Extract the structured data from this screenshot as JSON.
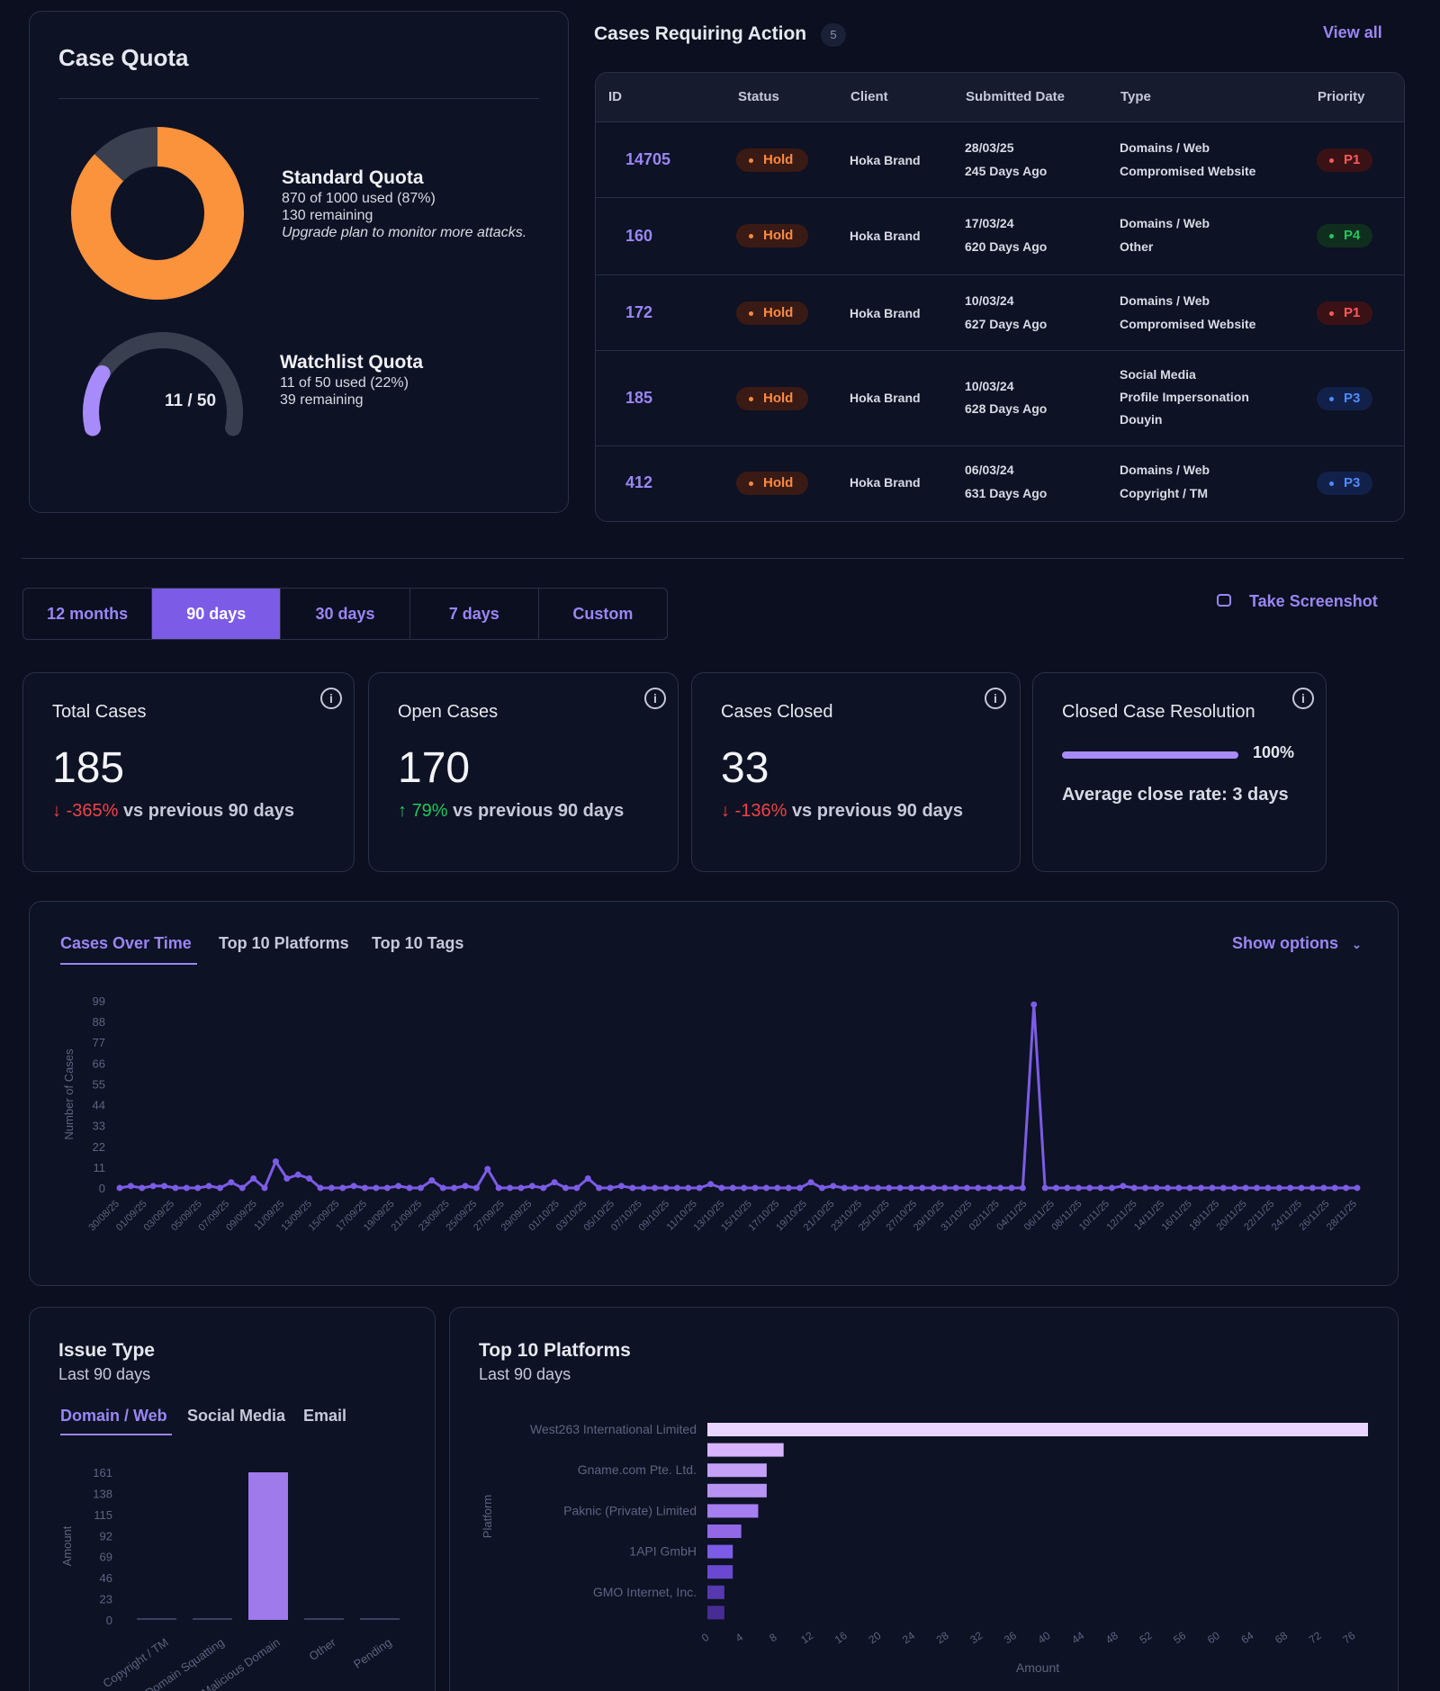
{
  "quota": {
    "title": "Case Quota",
    "standard": {
      "title": "Standard Quota",
      "used_text": "870 of 1000 used (87%)",
      "remaining_text": "130 remaining",
      "note": "Upgrade plan to monitor more attacks.",
      "used": 870,
      "total": 1000
    },
    "watchlist": {
      "title": "Watchlist Quota",
      "used_text": "11 of 50 used (22%)",
      "remaining_text": "39 remaining",
      "gauge_label": "11 / 50",
      "used": 11,
      "total": 50
    },
    "colors": {
      "standard": "#fb923c",
      "watchlist": "#a78bfa",
      "track": "#3a3f4f"
    }
  },
  "cases": {
    "title": "Cases Requiring Action",
    "count": "5",
    "view_all": "View all",
    "columns": [
      "ID",
      "Status",
      "Client",
      "Submitted Date",
      "Type",
      "Priority"
    ],
    "rows": [
      {
        "id": "14705",
        "status": "Hold",
        "client": "Hoka Brand",
        "date": "28/03/25",
        "ago": "245 Days Ago",
        "type": [
          "Domains / Web",
          "Compromised Website"
        ],
        "priority": "P1"
      },
      {
        "id": "160",
        "status": "Hold",
        "client": "Hoka Brand",
        "date": "17/03/24",
        "ago": "620 Days Ago",
        "type": [
          "Domains / Web",
          "Other"
        ],
        "priority": "P4"
      },
      {
        "id": "172",
        "status": "Hold",
        "client": "Hoka Brand",
        "date": "10/03/24",
        "ago": "627 Days Ago",
        "type": [
          "Domains / Web",
          "Compromised Website"
        ],
        "priority": "P1"
      },
      {
        "id": "185",
        "status": "Hold",
        "client": "Hoka Brand",
        "date": "10/03/24",
        "ago": "628 Days Ago",
        "type": [
          "Social Media",
          "Profile Impersonation",
          "Douyin"
        ],
        "priority": "P3"
      },
      {
        "id": "412",
        "status": "Hold",
        "client": "Hoka Brand",
        "date": "06/03/24",
        "ago": "631 Days Ago",
        "type": [
          "Domains / Web",
          "Copyright / TM"
        ],
        "priority": "P3"
      }
    ]
  },
  "ranges": {
    "tabs": [
      "12 months",
      "90 days",
      "30 days",
      "7 days",
      "Custom"
    ],
    "active": 1
  },
  "screenshot_label": "Take Screenshot",
  "stats": [
    {
      "title": "Total Cases",
      "value": "185",
      "trend_dir": "down",
      "trend_pct": "-365%",
      "trend_text": "vs previous 90 days"
    },
    {
      "title": "Open Cases",
      "value": "170",
      "trend_dir": "up",
      "trend_pct": "79%",
      "trend_text": "vs previous 90 days"
    },
    {
      "title": "Cases Closed",
      "value": "33",
      "trend_dir": "down",
      "trend_pct": "-136%",
      "trend_text": "vs previous 90 days"
    }
  ],
  "resolution": {
    "title": "Closed Case Resolution",
    "percent_label": "100%",
    "percent": 100,
    "avg": "Average close rate: 3 days"
  },
  "chart_tabs": {
    "tabs": [
      "Cases Over Time",
      "Top 10 Platforms",
      "Top 10 Tags"
    ],
    "show_options": "Show options"
  },
  "chart_data": [
    {
      "type": "line",
      "ylabel": "Number of Cases",
      "yticks": [
        0,
        11,
        22,
        33,
        44,
        55,
        66,
        77,
        88,
        99
      ],
      "ylim": [
        0,
        99
      ],
      "xtick_labels": [
        "30/08/25",
        "01/09/25",
        "03/09/25",
        "05/09/25",
        "07/09/25",
        "09/09/25",
        "11/09/25",
        "13/09/25",
        "15/09/25",
        "17/09/25",
        "19/09/25",
        "21/09/25",
        "23/09/25",
        "25/09/25",
        "27/09/25",
        "29/09/25",
        "01/10/25",
        "03/10/25",
        "05/10/25",
        "07/10/25",
        "09/10/25",
        "11/10/25",
        "13/10/25",
        "15/10/25",
        "17/10/25",
        "19/10/25",
        "21/10/25",
        "23/10/25",
        "25/10/25",
        "27/10/25",
        "29/10/25",
        "31/10/25",
        "02/11/25",
        "04/11/25",
        "06/11/25",
        "08/11/25",
        "10/11/25",
        "12/11/25",
        "14/11/25",
        "16/11/25",
        "18/11/25",
        "20/11/25",
        "22/11/25",
        "24/11/25",
        "26/11/25",
        "28/11/25"
      ],
      "values": [
        0,
        1,
        0,
        1,
        1,
        0,
        0,
        0,
        1,
        0,
        3,
        0,
        5,
        0,
        14,
        5,
        7,
        5,
        0,
        0,
        0,
        1,
        0,
        0,
        0,
        1,
        0,
        0,
        4,
        0,
        0,
        1,
        0,
        10,
        0,
        0,
        0,
        1,
        0,
        3,
        0,
        0,
        5,
        0,
        0,
        1,
        0,
        0,
        0,
        0,
        0,
        0,
        0,
        2,
        0,
        0,
        0,
        0,
        0,
        0,
        0,
        0,
        3,
        0,
        1,
        0,
        0,
        0,
        0,
        0,
        0,
        0,
        0,
        0,
        0,
        0,
        0,
        0,
        0,
        0,
        0,
        0,
        97,
        0,
        0,
        0,
        0,
        0,
        0,
        0,
        1,
        0,
        0,
        0,
        0,
        0,
        0,
        0,
        0,
        0,
        0,
        0,
        0,
        0,
        0,
        0,
        0,
        0,
        0,
        0,
        0,
        0
      ]
    },
    {
      "type": "bar",
      "title": "Issue Type",
      "subtitle": "Last 90 days",
      "ylabel": "Amount",
      "yticks": [
        0,
        23,
        46,
        69,
        92,
        115,
        138,
        161
      ],
      "ylim": [
        0,
        161
      ],
      "categories": [
        "Copyright / TM",
        "Domain Squatting",
        "Malicious Domain",
        "Other",
        "Pending"
      ],
      "values": [
        0,
        0,
        161,
        1,
        0
      ]
    },
    {
      "type": "bar",
      "orientation": "horizontal",
      "title": "Top 10 Platforms",
      "subtitle": "Last 90 days",
      "ylabel": "Platform",
      "xlabel": "Amount",
      "xticks": [
        0,
        4,
        8,
        12,
        16,
        20,
        24,
        28,
        32,
        36,
        40,
        44,
        48,
        52,
        56,
        60,
        64,
        68,
        72,
        76
      ],
      "xlim": [
        0,
        78
      ],
      "categories": [
        "West263 International Limited",
        "",
        "Gname.com Pte. Ltd.",
        "",
        "Paknic (Private) Limited",
        "",
        "1API GmbH",
        "",
        "GMO Internet, Inc.",
        ""
      ],
      "values": [
        78,
        9,
        7,
        7,
        6,
        4,
        3,
        3,
        2,
        2
      ]
    }
  ],
  "issue_tabs": {
    "tabs": [
      "Domain / Web",
      "Social Media",
      "Email"
    ]
  }
}
